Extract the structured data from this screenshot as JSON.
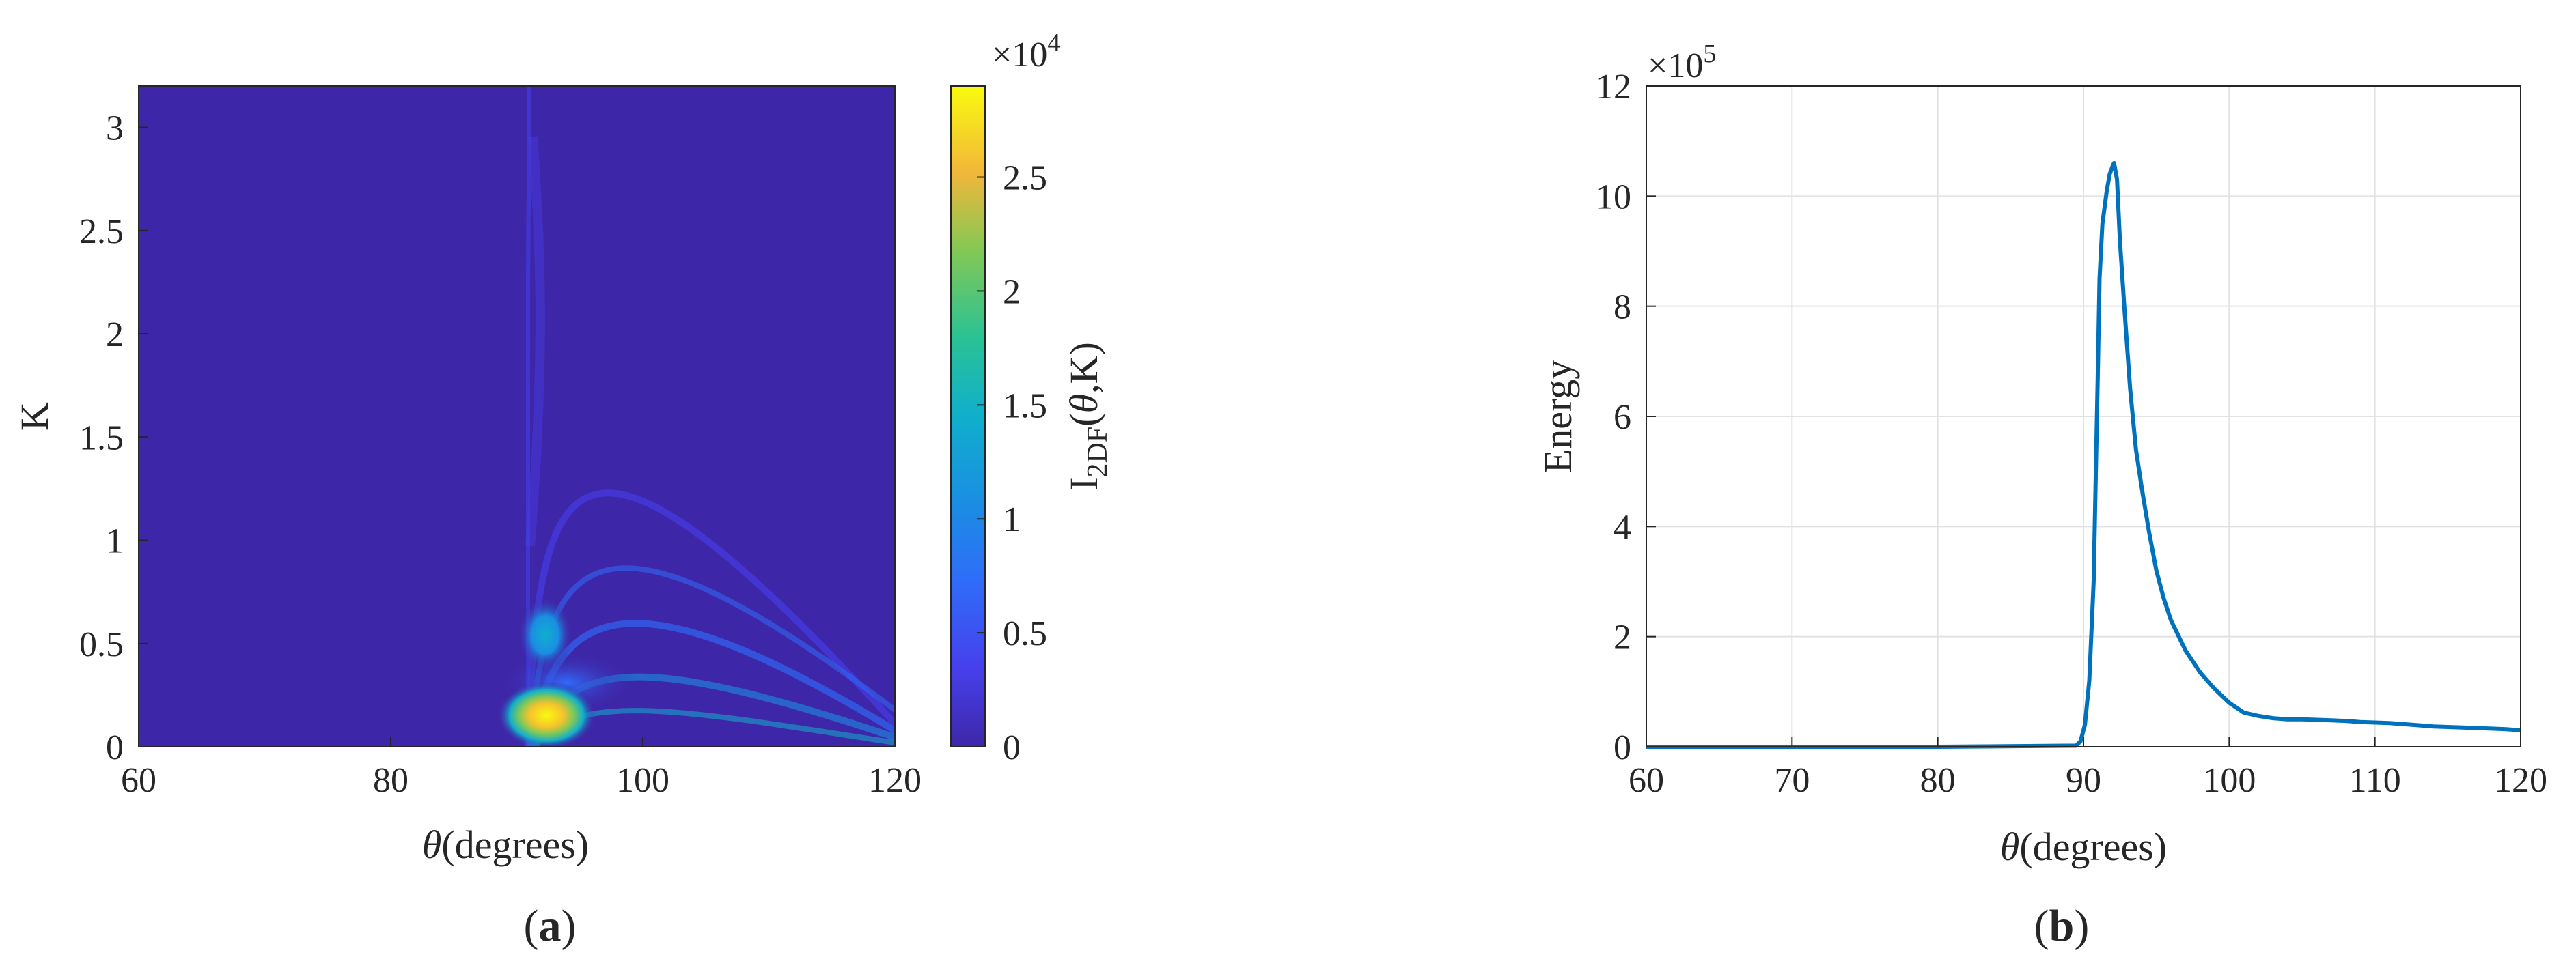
{
  "chart_data": [
    {
      "panel_label": "(a)",
      "type": "heatmap",
      "x_unit": "(degrees)",
      "ylabel": "K",
      "xlim": [
        60,
        120
      ],
      "ylim": [
        0,
        3.2
      ],
      "xticks": [
        "60",
        "80",
        "100",
        "120"
      ],
      "xtick_values": [
        60,
        80,
        100,
        120
      ],
      "yticks": [
        "0",
        "0.5",
        "1",
        "1.5",
        "2",
        "2.5",
        "3"
      ],
      "ytick_values": [
        0,
        0.5,
        1,
        1.5,
        2,
        2.5,
        3
      ],
      "colorbar": {
        "label_base": "I",
        "label_sub": "2DF",
        "label_args": ",K)",
        "multiplier_base": "×10",
        "multiplier_exp": "4",
        "range": [
          0,
          2.9
        ],
        "ticks": [
          "0",
          "0.5",
          "1",
          "1.5",
          "2",
          "2.5"
        ],
        "tick_values": [
          0,
          0.5,
          1,
          1.5,
          2,
          2.5
        ],
        "colormap": "parula"
      },
      "features": [
        {
          "theta": 92.5,
          "K": 0.15,
          "value": 2.9
        },
        {
          "theta": 92.5,
          "K": 0.55,
          "value": 1.0
        }
      ]
    },
    {
      "panel_label": "(b)",
      "type": "line",
      "x_unit": "(degrees)",
      "ylabel": "Energy",
      "multiplier_base": "×10",
      "multiplier_exp": "5",
      "xlim": [
        60,
        120
      ],
      "ylim": [
        0,
        12
      ],
      "xticks": [
        "60",
        "70",
        "80",
        "90",
        "100",
        "110",
        "120"
      ],
      "xtick_values": [
        60,
        70,
        80,
        90,
        100,
        110,
        120
      ],
      "yticks": [
        "0",
        "2",
        "4",
        "6",
        "8",
        "10",
        "12"
      ],
      "ytick_values": [
        0,
        2,
        4,
        6,
        8,
        10,
        12
      ],
      "grid": true,
      "color": "#0072BD",
      "series": [
        {
          "x": [
            60,
            70,
            80,
            89.5,
            89.8,
            90.1,
            90.4,
            90.7,
            91.0,
            91.1,
            91.3,
            91.6,
            91.8,
            92.0,
            92.1,
            92.3,
            92.5,
            92.8,
            93.2,
            93.6,
            94.0,
            94.5,
            95.0,
            95.5,
            96.0,
            97.0,
            98.0,
            99.0,
            100.0,
            101.0,
            102.0,
            103.0,
            104.0,
            105.0,
            106.0,
            107.0,
            108.0,
            109.0,
            110.0,
            111.0,
            112.0,
            113.0,
            114.0,
            115.0,
            116.0,
            117.0,
            118.0,
            119.0,
            120.0
          ],
          "y": [
            0,
            0,
            0,
            0.02,
            0.1,
            0.4,
            1.2,
            3.0,
            7.0,
            8.5,
            9.5,
            10.1,
            10.4,
            10.55,
            10.6,
            10.3,
            9.2,
            8.0,
            6.5,
            5.4,
            4.7,
            3.9,
            3.2,
            2.7,
            2.3,
            1.75,
            1.35,
            1.05,
            0.8,
            0.62,
            0.56,
            0.52,
            0.5,
            0.5,
            0.49,
            0.48,
            0.47,
            0.45,
            0.44,
            0.43,
            0.41,
            0.39,
            0.37,
            0.36,
            0.35,
            0.34,
            0.33,
            0.32,
            0.3
          ]
        }
      ]
    }
  ]
}
